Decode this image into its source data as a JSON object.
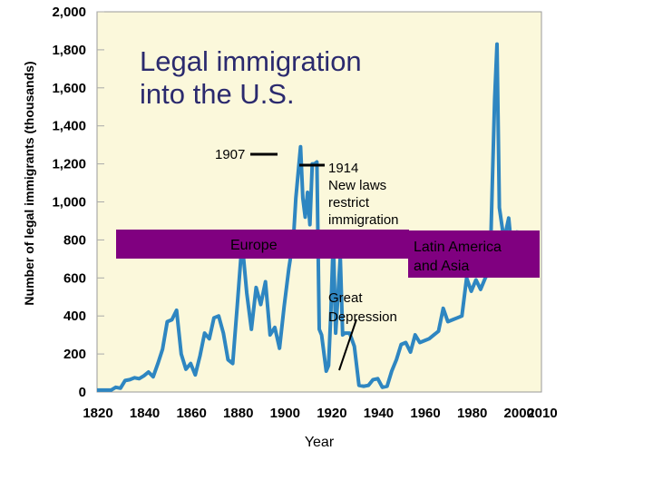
{
  "chart_data": {
    "type": "line",
    "title": [
      "Legal immigration",
      "into the U.S."
    ],
    "xlabel": "Year",
    "ylabel": "Number of legal immigrants (thousands)",
    "xlim": [
      1820,
      2010
    ],
    "ylim": [
      0,
      2000
    ],
    "x_ticks": [
      "1820",
      "1840",
      "1860",
      "1880",
      "1900",
      "1920",
      "1940",
      "1960",
      "1980",
      "2000",
      "2010"
    ],
    "y_ticks": [
      "0",
      "200",
      "400",
      "600",
      "800",
      "1,000",
      "1,200",
      "1,400",
      "1,600",
      "1,800",
      "2,000"
    ],
    "series_color": "#2e86c1",
    "background_color": "#fbf8db",
    "band_color": "#800080",
    "annotations": {
      "a1907": "1907",
      "a1914": [
        "1914",
        "New laws",
        "restrict",
        "immigration"
      ],
      "depression": [
        "Great",
        "Depression"
      ]
    },
    "band_labels": {
      "europe": "Europe",
      "latam": [
        "Latin America",
        "and Asia"
      ]
    },
    "series": [
      {
        "x": [
          1820,
          1822,
          1824,
          1826,
          1828,
          1830,
          1832,
          1834,
          1836,
          1838,
          1840,
          1842,
          1844,
          1846,
          1848,
          1850,
          1852,
          1854,
          1856,
          1858,
          1860,
          1862,
          1864,
          1866,
          1868,
          1870,
          1872,
          1874,
          1876,
          1878,
          1880,
          1882,
          1884,
          1886,
          1888,
          1890,
          1892,
          1894,
          1896,
          1898,
          1900,
          1902,
          1904,
          1905,
          1907,
          1908,
          1909,
          1910,
          1911,
          1912,
          1913,
          1914,
          1915,
          1916,
          1918,
          1919,
          1920,
          1921,
          1922,
          1924,
          1925,
          1926,
          1928,
          1930,
          1932,
          1934,
          1936,
          1938,
          1940,
          1942,
          1944,
          1946,
          1948,
          1950,
          1952,
          1954,
          1956,
          1958,
          1960,
          1962,
          1964,
          1966,
          1968,
          1970,
          1972,
          1974,
          1976,
          1978,
          1980,
          1982,
          1984,
          1986,
          1988,
          1989,
          1990,
          1991,
          1992,
          1994,
          1996,
          1998,
          2000
        ],
        "values": [
          10,
          10,
          10,
          10,
          25,
          20,
          60,
          65,
          75,
          70,
          85,
          105,
          80,
          150,
          225,
          370,
          380,
          430,
          200,
          120,
          150,
          90,
          190,
          310,
          280,
          390,
          400,
          310,
          170,
          150,
          460,
          790,
          520,
          330,
          550,
          460,
          580,
          300,
          340,
          230,
          450,
          650,
          810,
          1020,
          1290,
          1020,
          920,
          1050,
          880,
          1200,
          1200,
          1210,
          330,
          300,
          110,
          140,
          430,
          810,
          310,
          710,
          300,
          310,
          310,
          240,
          35,
          30,
          35,
          65,
          70,
          25,
          30,
          110,
          170,
          250,
          260,
          210,
          300,
          260,
          270,
          280,
          300,
          320,
          440,
          370,
          380,
          390,
          400,
          600,
          530,
          590,
          540,
          600,
          640,
          1090,
          1540,
          1830,
          970,
          800,
          915,
          655,
          850
        ]
      }
    ]
  }
}
